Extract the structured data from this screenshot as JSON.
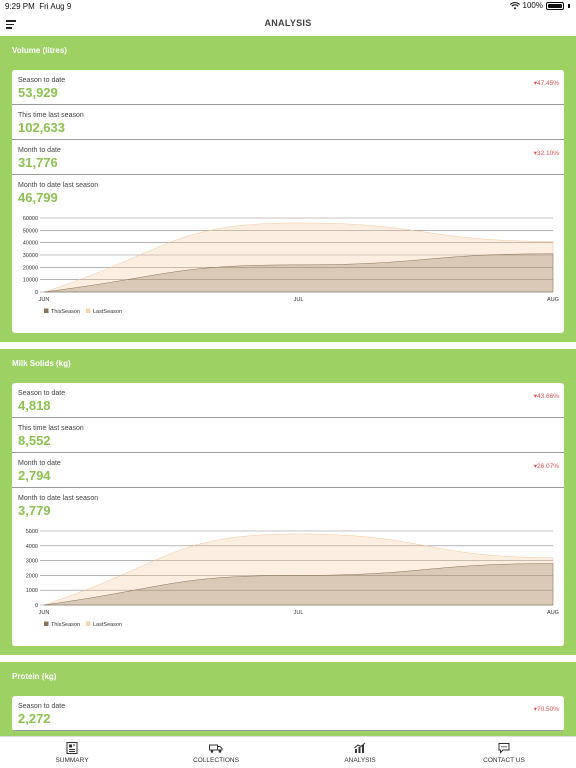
{
  "status": {
    "time": "9:29 PM",
    "date": "Fri Aug 9",
    "battery": "100%"
  },
  "header": {
    "title": "ANALYSIS"
  },
  "sections": [
    {
      "title": "Volume (litres)",
      "stats": [
        {
          "label": "Season to date",
          "value": "53,929",
          "delta": "▾47.45%"
        },
        {
          "label": "This time last season",
          "value": "102,633",
          "delta": ""
        },
        {
          "label": "Month to date",
          "value": "31,776",
          "delta": "▾32.10%"
        },
        {
          "label": "Month to date last season",
          "value": "46,799",
          "delta": ""
        }
      ]
    },
    {
      "title": "Milk Solids (kg)",
      "stats": [
        {
          "label": "Season to date",
          "value": "4,818",
          "delta": "▾43.66%"
        },
        {
          "label": "This time last season",
          "value": "8,552",
          "delta": ""
        },
        {
          "label": "Month to date",
          "value": "2,794",
          "delta": "▾26.07%"
        },
        {
          "label": "Month to date last season",
          "value": "3,779",
          "delta": ""
        }
      ]
    },
    {
      "title": "Protein (kg)",
      "stats": [
        {
          "label": "Season to date",
          "value": "2,272",
          "delta": "▾70.50%"
        }
      ]
    }
  ],
  "chart_data": [
    {
      "type": "area",
      "x": [
        "JUN",
        "JUL",
        "AUG"
      ],
      "yticks": [
        0,
        10000,
        20000,
        30000,
        40000,
        50000,
        60000
      ],
      "ylim": [
        0,
        60000
      ],
      "grid": true,
      "legend": "bottom-left",
      "series": [
        {
          "name": "ThisSeason",
          "color": "#8b7355",
          "values": [
            0,
            22000,
            31000
          ]
        },
        {
          "name": "LastSeason",
          "color": "#f5c89a",
          "values": [
            0,
            56000,
            41000
          ]
        }
      ]
    },
    {
      "type": "area",
      "x": [
        "JUN",
        "JUL",
        "AUG"
      ],
      "yticks": [
        0,
        1000,
        2000,
        3000,
        4000,
        5000
      ],
      "ylim": [
        0,
        5000
      ],
      "grid": true,
      "legend": "bottom-left",
      "series": [
        {
          "name": "ThisSeason",
          "color": "#8b7355",
          "values": [
            0,
            2000,
            2800
          ]
        },
        {
          "name": "LastSeason",
          "color": "#f5c89a",
          "values": [
            0,
            4800,
            3200
          ]
        }
      ]
    }
  ],
  "tabs": [
    {
      "label": "SUMMARY",
      "icon": "summary-icon"
    },
    {
      "label": "COLLECTIONS",
      "icon": "truck-icon"
    },
    {
      "label": "ANALYSIS",
      "icon": "chart-icon"
    },
    {
      "label": "CONTACT US",
      "icon": "chat-icon"
    }
  ]
}
